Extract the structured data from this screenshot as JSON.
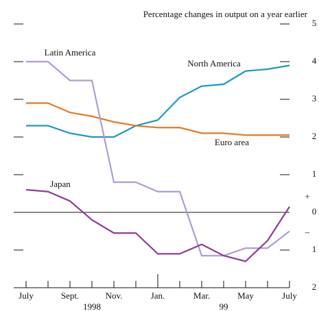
{
  "chart_data": {
    "type": "line",
    "title": "Percentage changes in output on a year earlier",
    "categories": [
      "July",
      null,
      "Sept.",
      null,
      "Nov.",
      null,
      "Jan.",
      null,
      "Mar.",
      null,
      "May",
      null,
      "July"
    ],
    "year_labels": [
      "1998",
      "99"
    ],
    "sign_labels": [
      "+",
      "–"
    ],
    "series": [
      {
        "name": "North America",
        "color": "#1a9bc0",
        "values": [
          2.3,
          2.3,
          2.1,
          2.0,
          2.0,
          2.3,
          2.45,
          3.05,
          3.35,
          3.4,
          3.75,
          3.8,
          3.9
        ]
      },
      {
        "name": "Euro area",
        "color": "#e07b2a",
        "values": [
          2.9,
          2.9,
          2.65,
          2.55,
          2.4,
          2.3,
          2.25,
          2.25,
          2.1,
          2.1,
          2.05,
          2.05,
          2.05
        ]
      },
      {
        "name": "Latin America",
        "color": "#b09ccf",
        "values": [
          4.0,
          4.0,
          3.5,
          3.5,
          0.8,
          0.8,
          0.55,
          0.55,
          -1.15,
          -1.15,
          -0.95,
          -0.95,
          -0.5
        ]
      },
      {
        "name": "Japan",
        "color": "#8e3d91",
        "values": [
          0.6,
          0.55,
          0.3,
          -0.2,
          -0.55,
          -0.55,
          -1.1,
          -1.1,
          -0.85,
          -1.15,
          -1.3,
          -0.75,
          0.15
        ]
      }
    ],
    "ylim": [
      -2,
      5
    ],
    "yticks": [
      {
        "value": -2,
        "label": "2"
      },
      {
        "value": -1,
        "label": "1"
      },
      0,
      1,
      2,
      3,
      4,
      5
    ]
  }
}
